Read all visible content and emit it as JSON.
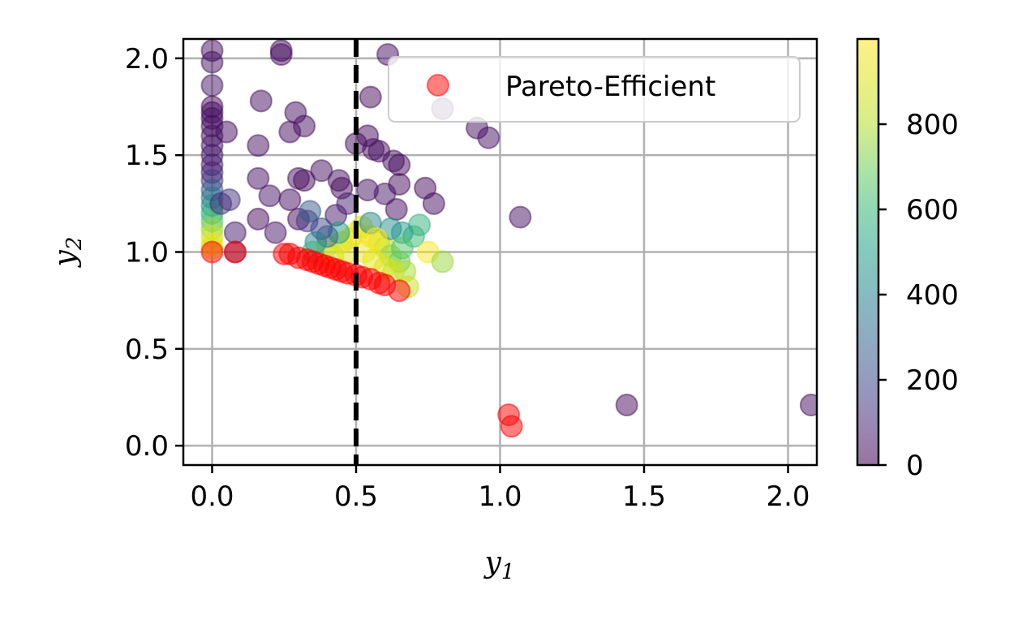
{
  "chart_data": {
    "type": "scatter",
    "xlim": [
      -0.1,
      2.1
    ],
    "ylim": [
      -0.1,
      2.1
    ],
    "x_ticks": [
      0.0,
      0.5,
      1.0,
      1.5,
      2.0
    ],
    "y_ticks": [
      0.0,
      0.5,
      1.0,
      1.5,
      2.0
    ],
    "x_tick_labels": [
      "0.0",
      "0.5",
      "1.0",
      "1.5",
      "2.0"
    ],
    "y_tick_labels": [
      "0.0",
      "0.5",
      "1.0",
      "1.5",
      "2.0"
    ],
    "xlabel_main": "y",
    "xlabel_sub": "1",
    "ylabel_main": "y",
    "ylabel_sub": "2",
    "grid": true,
    "legend_position": "top-right",
    "vertical_line": {
      "x": 0.5,
      "style": "dashed",
      "color": "#000000"
    },
    "colorbar": {
      "colormap": "viridis",
      "range": [
        0,
        1000
      ],
      "ticks": [
        0,
        200,
        400,
        600,
        800
      ],
      "tick_labels": [
        "0",
        "200",
        "400",
        "600",
        "800"
      ]
    },
    "series": [
      {
        "kind": "colored",
        "alpha": 0.5,
        "points": [
          [
            0.0,
            2.04,
            30
          ],
          [
            0.0,
            1.98,
            40
          ],
          [
            0.0,
            1.86,
            50
          ],
          [
            0.0,
            1.75,
            20
          ],
          [
            0.0,
            1.72,
            25
          ],
          [
            0.0,
            1.69,
            35
          ],
          [
            0.0,
            1.65,
            30
          ],
          [
            0.0,
            1.6,
            40
          ],
          [
            0.0,
            1.55,
            50
          ],
          [
            0.0,
            1.5,
            60
          ],
          [
            0.0,
            1.45,
            70
          ],
          [
            0.0,
            1.41,
            80
          ],
          [
            0.0,
            1.37,
            150
          ],
          [
            0.0,
            1.32,
            250
          ],
          [
            0.0,
            1.28,
            350
          ],
          [
            0.0,
            1.24,
            450
          ],
          [
            0.0,
            1.2,
            550
          ],
          [
            0.0,
            1.16,
            650
          ],
          [
            0.0,
            1.12,
            750
          ],
          [
            0.0,
            1.08,
            850
          ],
          [
            0.0,
            1.04,
            950
          ],
          [
            0.0,
            1.02,
            900
          ],
          [
            0.05,
            1.62,
            30
          ],
          [
            0.06,
            1.27,
            120
          ],
          [
            0.08,
            1.1,
            60
          ],
          [
            0.03,
            1.25,
            130
          ],
          [
            0.17,
            1.78,
            30
          ],
          [
            0.16,
            1.55,
            40
          ],
          [
            0.16,
            1.38,
            40
          ],
          [
            0.2,
            1.29,
            50
          ],
          [
            0.16,
            1.17,
            20
          ],
          [
            0.24,
            2.04,
            30
          ],
          [
            0.24,
            2.02,
            30
          ],
          [
            0.29,
            1.72,
            30
          ],
          [
            0.27,
            1.62,
            25
          ],
          [
            0.32,
            1.65,
            35
          ],
          [
            0.3,
            1.38,
            45
          ],
          [
            0.32,
            1.37,
            20
          ],
          [
            0.38,
            1.42,
            40
          ],
          [
            0.27,
            1.27,
            30
          ],
          [
            0.3,
            1.17,
            20
          ],
          [
            0.33,
            1.16,
            150
          ],
          [
            0.34,
            1.21,
            250
          ],
          [
            0.22,
            1.1,
            50
          ],
          [
            0.44,
            1.37,
            40
          ],
          [
            0.45,
            1.33,
            20
          ],
          [
            0.43,
            1.19,
            60
          ],
          [
            0.47,
            1.25,
            80
          ],
          [
            0.5,
            1.56,
            30
          ],
          [
            0.54,
            1.6,
            25
          ],
          [
            0.56,
            1.53,
            35
          ],
          [
            0.58,
            1.52,
            40
          ],
          [
            0.55,
            1.8,
            20
          ],
          [
            0.61,
            2.02,
            30
          ],
          [
            0.63,
            1.47,
            25
          ],
          [
            0.65,
            1.45,
            30
          ],
          [
            0.54,
            1.32,
            40
          ],
          [
            0.6,
            1.3,
            50
          ],
          [
            0.65,
            1.35,
            20
          ],
          [
            0.64,
            1.22,
            30
          ],
          [
            0.74,
            1.33,
            20
          ],
          [
            0.77,
            1.25,
            30
          ],
          [
            0.92,
            1.64,
            30
          ],
          [
            0.96,
            1.59,
            35
          ],
          [
            1.07,
            1.18,
            40
          ],
          [
            1.44,
            0.21,
            20
          ],
          [
            2.08,
            0.21,
            25
          ],
          [
            0.4,
            1.03,
            820
          ],
          [
            0.45,
            1.05,
            900
          ],
          [
            0.48,
            1.07,
            950
          ],
          [
            0.5,
            1.1,
            980
          ],
          [
            0.52,
            1.13,
            900
          ],
          [
            0.55,
            1.08,
            930
          ],
          [
            0.58,
            1.05,
            870
          ],
          [
            0.6,
            1.02,
            800
          ],
          [
            0.62,
            0.98,
            760
          ],
          [
            0.65,
            0.95,
            700
          ],
          [
            0.67,
            0.9,
            780
          ],
          [
            0.68,
            0.82,
            850
          ],
          [
            0.53,
            1.0,
            960
          ],
          [
            0.47,
            1.0,
            920
          ],
          [
            0.42,
            0.98,
            880
          ],
          [
            0.56,
            0.96,
            940
          ],
          [
            0.6,
            0.92,
            900
          ],
          [
            0.63,
            0.9,
            860
          ],
          [
            0.7,
            1.08,
            600
          ],
          [
            0.72,
            1.14,
            580
          ],
          [
            0.66,
            1.1,
            500
          ],
          [
            0.62,
            1.12,
            450
          ],
          [
            0.55,
            1.15,
            420
          ],
          [
            0.75,
            1.0,
            980
          ],
          [
            0.8,
            0.95,
            760
          ],
          [
            0.57,
            1.07,
            990
          ],
          [
            0.44,
            1.1,
            500
          ],
          [
            0.4,
            1.08,
            300
          ],
          [
            0.38,
            1.12,
            200
          ],
          [
            0.36,
            1.05,
            400
          ],
          [
            0.35,
            1.0,
            600
          ],
          [
            0.66,
            1.02,
            660
          ],
          [
            0.8,
            1.74,
            100
          ],
          [
            0.08,
            1.0,
            100
          ]
        ]
      },
      {
        "name": "Pareto-Efficient",
        "kind": "pareto",
        "color": "#ff0000",
        "alpha": 0.5,
        "points": [
          [
            0.0,
            1.0
          ],
          [
            0.08,
            1.0
          ],
          [
            0.25,
            0.99
          ],
          [
            0.27,
            0.99
          ],
          [
            0.3,
            0.97
          ],
          [
            0.33,
            0.96
          ],
          [
            0.35,
            0.95
          ],
          [
            0.37,
            0.94
          ],
          [
            0.39,
            0.93
          ],
          [
            0.41,
            0.92
          ],
          [
            0.43,
            0.91
          ],
          [
            0.45,
            0.9
          ],
          [
            0.47,
            0.89
          ],
          [
            0.5,
            0.88
          ],
          [
            0.52,
            0.87
          ],
          [
            0.55,
            0.86
          ],
          [
            0.58,
            0.84
          ],
          [
            0.6,
            0.83
          ],
          [
            0.65,
            0.8
          ],
          [
            1.03,
            0.16
          ],
          [
            1.04,
            0.1
          ]
        ]
      }
    ]
  }
}
